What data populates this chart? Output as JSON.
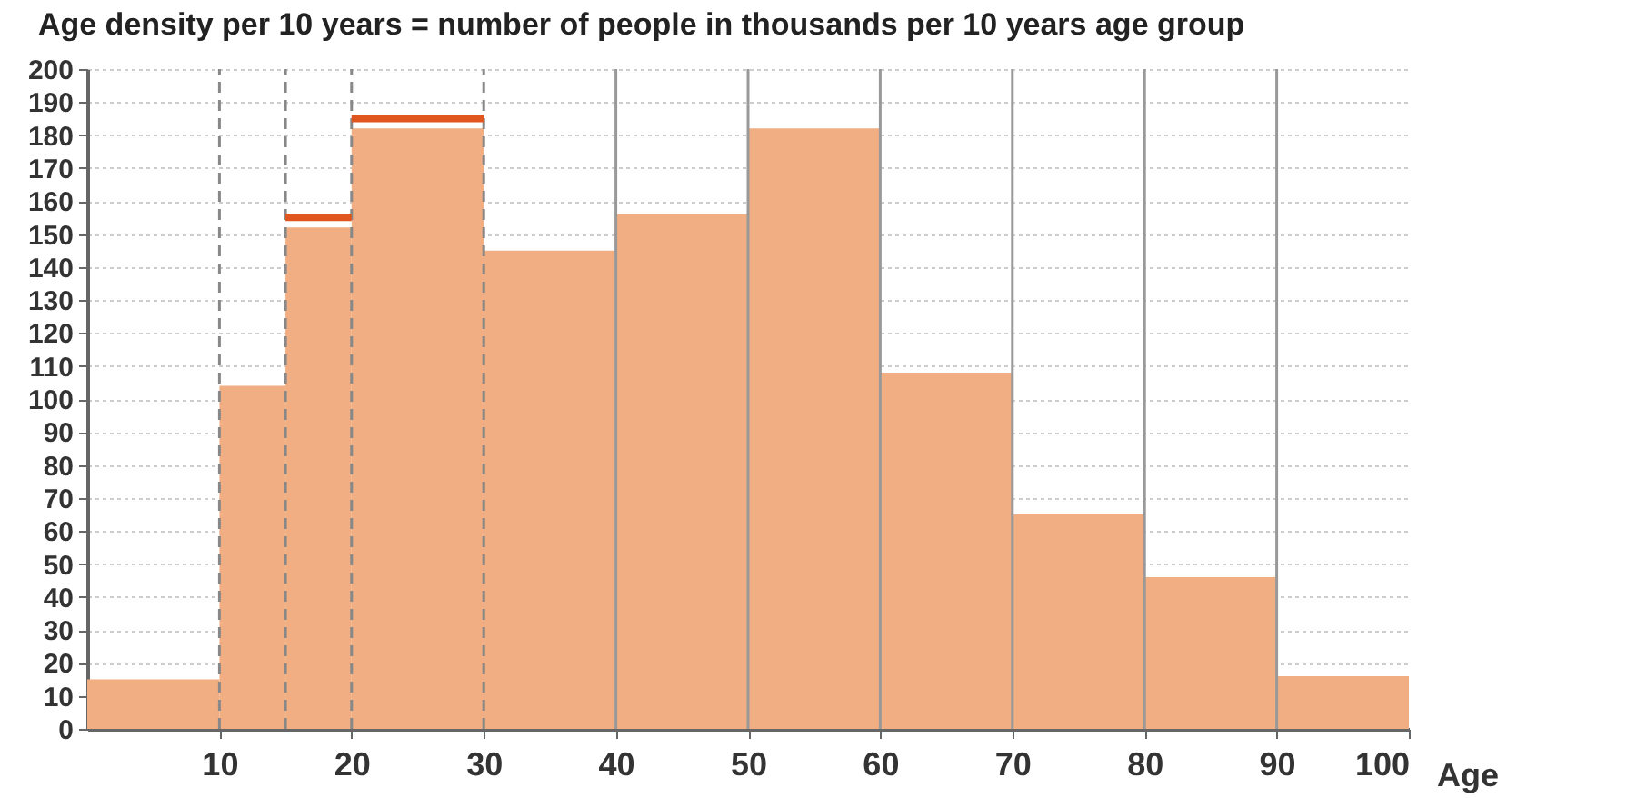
{
  "chart_data": {
    "type": "histogram",
    "title": "Age density per 10 years = number of people in thousands per 10 years age group",
    "xlabel": "Age",
    "bins": [
      0,
      10,
      15,
      20,
      30,
      40,
      50,
      60,
      70,
      80,
      90,
      100
    ],
    "series": [
      {
        "color": "#f0ae82",
        "values": [
          15,
          104,
          152,
          182,
          145,
          156,
          182,
          108,
          65,
          46,
          16
        ]
      },
      {
        "type": "line",
        "color": "#e0561e",
        "x": [
          15,
          20
        ],
        "values": [
          155,
          155
        ]
      },
      {
        "type": "line",
        "color": "#e0561e",
        "x": [
          20,
          30
        ],
        "values": [
          185,
          185
        ]
      }
    ],
    "xlim": [
      0,
      100
    ],
    "xticks": [
      10,
      20,
      30,
      40,
      50,
      60,
      70,
      80,
      90,
      100
    ],
    "ylim": [
      0,
      200
    ],
    "yticks": [
      0,
      10,
      20,
      30,
      40,
      50,
      60,
      70,
      80,
      90,
      100,
      110,
      120,
      130,
      140,
      150,
      160,
      170,
      180,
      190,
      200
    ],
    "grid": "y",
    "ref_lines": [
      {
        "axis": "x",
        "value": 10,
        "color": "#888888",
        "line_style": "dashed"
      },
      {
        "axis": "x",
        "value": 15,
        "color": "#888888",
        "line_style": "dashed"
      },
      {
        "axis": "x",
        "value": 20,
        "color": "#888888",
        "line_style": "dashed"
      },
      {
        "axis": "x",
        "value": 30,
        "color": "#888888",
        "line_style": "dashed"
      },
      {
        "axis": "x",
        "value": 40,
        "color": "#999999",
        "line_style": "solid"
      },
      {
        "axis": "x",
        "value": 50,
        "color": "#999999",
        "line_style": "solid"
      },
      {
        "axis": "x",
        "value": 60,
        "color": "#999999",
        "line_style": "solid"
      },
      {
        "axis": "x",
        "value": 70,
        "color": "#999999",
        "line_style": "solid"
      },
      {
        "axis": "x",
        "value": 80,
        "color": "#999999",
        "line_style": "solid"
      },
      {
        "axis": "x",
        "value": 90,
        "color": "#999999",
        "line_style": "solid"
      }
    ]
  }
}
